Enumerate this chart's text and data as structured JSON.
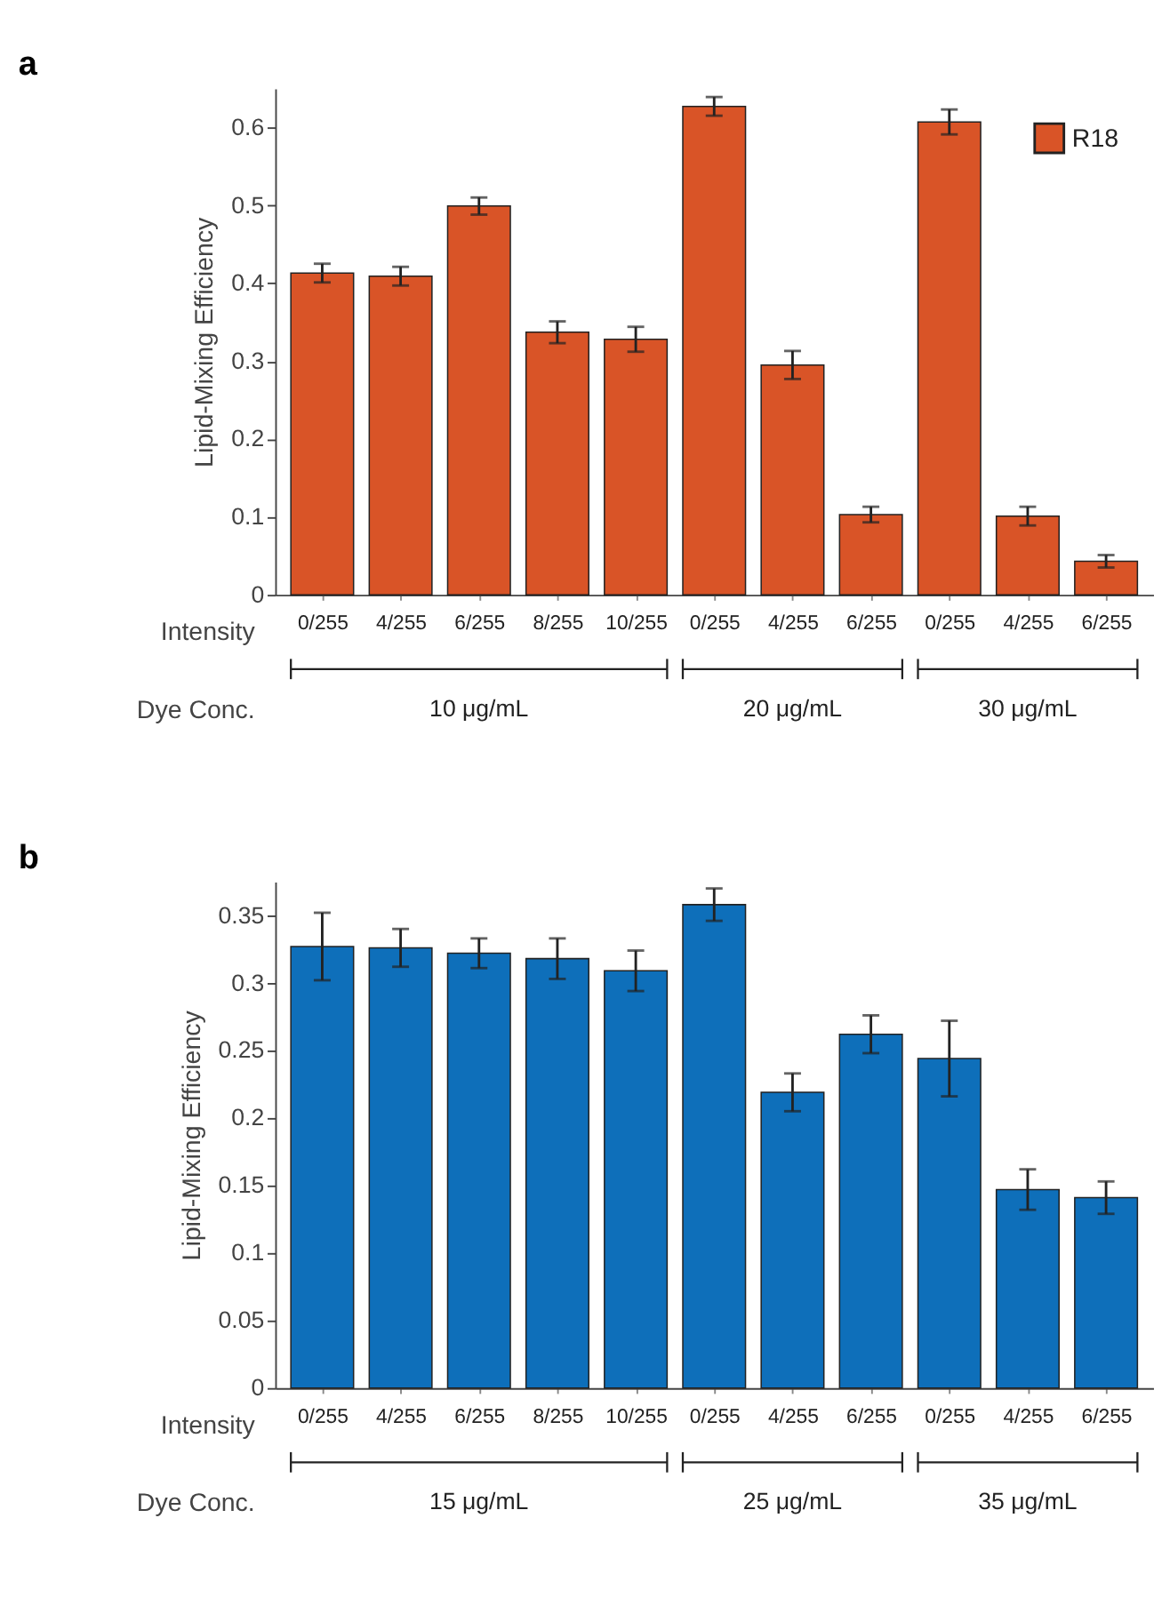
{
  "chart_data": [
    {
      "type": "bar",
      "title": "a",
      "ylabel": "Lipid-Mixing Efficiency",
      "xlabel": "Intensity",
      "categories": [
        "0/255",
        "4/255",
        "6/255",
        "8/255",
        "10/255",
        "0/255",
        "4/255",
        "6/255",
        "0/255",
        "4/255",
        "6/255"
      ],
      "series": [
        {
          "name": "R18",
          "color": "#d95427",
          "values": [
            0.413,
            0.409,
            0.499,
            0.337,
            0.328,
            0.627,
            0.295,
            0.103,
            0.607,
            0.101,
            0.043
          ],
          "errors": [
            0.012,
            0.012,
            0.011,
            0.014,
            0.016,
            0.012,
            0.018,
            0.01,
            0.016,
            0.012,
            0.008
          ]
        }
      ],
      "ylim": [
        0,
        0.65
      ],
      "yticks": [
        0,
        0.1,
        0.2,
        0.3,
        0.4,
        0.5,
        0.6
      ],
      "grid": false,
      "legend": "top right",
      "annotations": [
        "Dye Conc.",
        "10 μg/mL",
        "20 μg/mL",
        "30 μg/mL"
      ]
    },
    {
      "type": "bar",
      "title": "b",
      "ylabel": "Lipid-Mixing Efficiency",
      "xlabel": "Intensity",
      "categories": [
        "0/255",
        "4/255",
        "6/255",
        "8/255",
        "10/255",
        "0/255",
        "4/255",
        "6/255",
        "0/255",
        "4/255",
        "6/255"
      ],
      "series": [
        {
          "color": "#0e6fba",
          "values": [
            0.327,
            0.326,
            0.322,
            0.318,
            0.309,
            0.358,
            0.219,
            0.262,
            0.244,
            0.147,
            0.141
          ],
          "errors": [
            [
              0.302,
              0.352
            ],
            0.014,
            0.011,
            0.015,
            0.015,
            0.012,
            0.014,
            0.014,
            [
              0.216,
              0.272
            ],
            0.015,
            0.012
          ]
        }
      ],
      "ylim": [
        0,
        0.375
      ],
      "yticks": [
        0,
        0.05,
        0.1,
        0.15,
        0.2,
        0.25,
        0.3,
        0.35
      ],
      "grid": false,
      "annotations": [
        "Dye Conc.",
        "15 μg/mL",
        "25 μg/mL",
        "35 μg/mL"
      ]
    }
  ]
}
